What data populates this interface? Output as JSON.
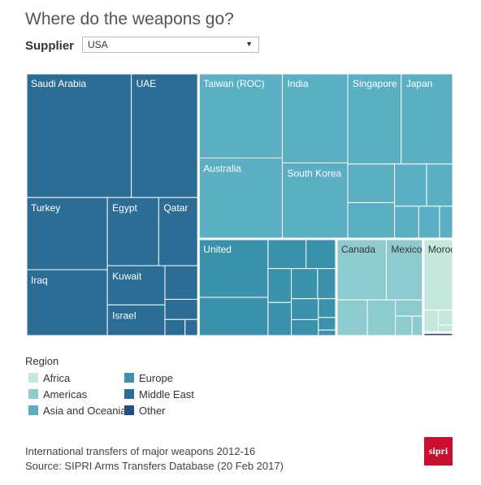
{
  "title": "Where do the weapons go?",
  "filter": {
    "label": "Supplier",
    "value": "USA"
  },
  "legend": {
    "title": "Region",
    "items": [
      {
        "label": "Africa",
        "color": "#c5e8dc"
      },
      {
        "label": "Americas",
        "color": "#8ecbcf"
      },
      {
        "label": "Asia and Oceania",
        "color": "#5aafc2"
      },
      {
        "label": "Europe",
        "color": "#3a92ad"
      },
      {
        "label": "Middle East",
        "color": "#2c6d95"
      },
      {
        "label": "Other",
        "color": "#234e82"
      }
    ]
  },
  "footer": {
    "line1": "International transfers of major weapons 2012-16",
    "line2": "Source: SIPRI Arms Transfers Database (20 Feb 2017)"
  },
  "logo_text": "sipri",
  "chart_data": {
    "type": "treemap",
    "note": "values are approximate relative shares read from tile areas",
    "groups": [
      {
        "region": "Middle East",
        "tiles": [
          {
            "label": "Saudi Arabia",
            "value": 116
          },
          {
            "label": "UAE",
            "value": 74
          },
          {
            "label": "Turkey",
            "value": 52
          },
          {
            "label": "Iraq",
            "value": 48
          },
          {
            "label": "Egypt",
            "value": 31
          },
          {
            "label": "Qatar",
            "value": 24
          },
          {
            "label": "Kuwait",
            "value": 20
          },
          {
            "label": "Israel",
            "value": 16
          },
          {
            "label": "",
            "value": 10
          },
          {
            "label": "",
            "value": 6
          },
          {
            "label": "",
            "value": 3
          },
          {
            "label": "",
            "value": 2
          }
        ]
      },
      {
        "region": "Europe",
        "tiles": [
          {
            "label": "United",
            "value": 36
          },
          {
            "label": "",
            "value": 24
          },
          {
            "label": "",
            "value": 10
          },
          {
            "label": "",
            "value": 8
          },
          {
            "label": "",
            "value": 7
          },
          {
            "label": "",
            "value": 7
          },
          {
            "label": "",
            "value": 7
          },
          {
            "label": "",
            "value": 5
          },
          {
            "label": "",
            "value": 5
          },
          {
            "label": "",
            "value": 4
          },
          {
            "label": "",
            "value": 3
          },
          {
            "label": "",
            "value": 2
          },
          {
            "label": "",
            "value": 1
          }
        ]
      },
      {
        "region": "Asia and Oceania",
        "tiles": [
          {
            "label": "Taiwan (ROC)",
            "value": 63
          },
          {
            "label": "Australia",
            "value": 60
          },
          {
            "label": "India",
            "value": 52
          },
          {
            "label": "South Korea",
            "value": 44
          },
          {
            "label": "Singapore",
            "value": 43
          },
          {
            "label": "Japan",
            "value": 42
          },
          {
            "label": "",
            "value": 16
          },
          {
            "label": "",
            "value": 15
          },
          {
            "label": "",
            "value": 12
          },
          {
            "label": "",
            "value": 10
          },
          {
            "label": "",
            "value": 7
          },
          {
            "label": "",
            "value": 6
          },
          {
            "label": "",
            "value": 4
          }
        ]
      },
      {
        "region": "Americas",
        "tiles": [
          {
            "label": "Canada",
            "value": 27
          },
          {
            "label": "Mexico",
            "value": 20
          },
          {
            "label": "",
            "value": 10
          },
          {
            "label": "",
            "value": 9
          },
          {
            "label": "",
            "value": 4
          },
          {
            "label": "",
            "value": 3
          },
          {
            "label": "",
            "value": 2
          }
        ]
      },
      {
        "region": "Africa",
        "tiles": [
          {
            "label": "Morocco",
            "value": 19
          },
          {
            "label": "",
            "value": 3
          },
          {
            "label": "",
            "value": 2
          },
          {
            "label": "",
            "value": 1
          }
        ]
      },
      {
        "region": "Other",
        "tiles": [
          {
            "label": "",
            "value": 1
          }
        ]
      }
    ]
  }
}
